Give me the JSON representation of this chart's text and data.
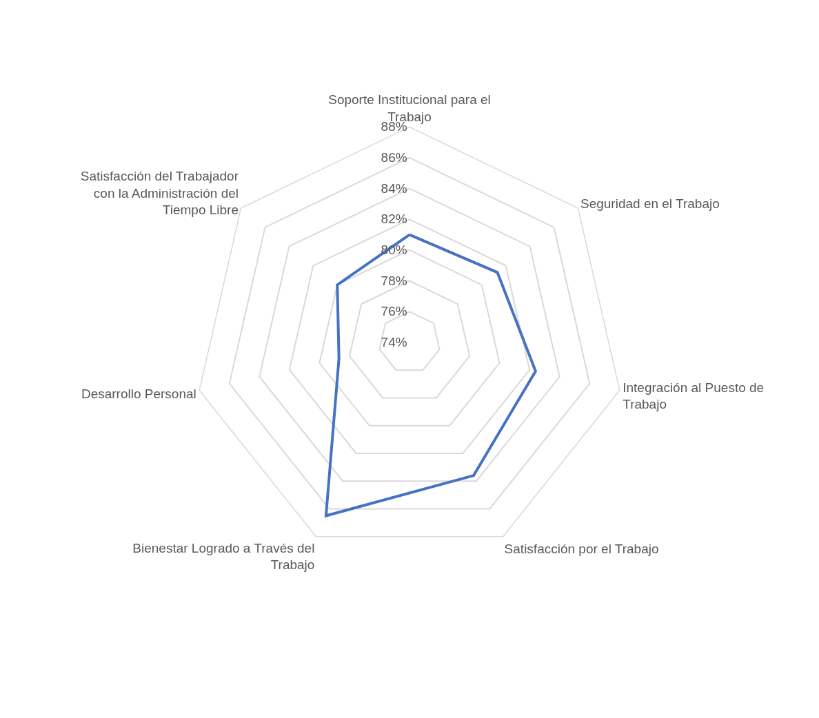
{
  "chart_data": {
    "type": "radar",
    "categories": [
      "Soporte Institucional para el Trabajo",
      "Seguridad en el Trabajo",
      "Integración al Puesto de Trabajo",
      "Satisfacción por el Trabajo",
      "Bienestar Logrado a Través del Trabajo",
      "Desarrollo Personal",
      "Satisfacción del Trabajador con la Administración del Tiempo Libre"
    ],
    "series": [
      {
        "color": "#4472c4",
        "values": [
          81.0,
          81.3,
          82.4,
          83.6,
          86.5,
          78.7,
          80.0
        ]
      }
    ],
    "ylim": [
      74,
      88
    ],
    "yticks": [
      {
        "value": 74,
        "label": "74%"
      },
      {
        "value": 76,
        "label": "76%"
      },
      {
        "value": 78,
        "label": "78%"
      },
      {
        "value": 80,
        "label": "80%"
      },
      {
        "value": 82,
        "label": "82%"
      },
      {
        "value": 84,
        "label": "84%"
      },
      {
        "value": 86,
        "label": "86%"
      },
      {
        "value": 88,
        "label": "88%"
      }
    ],
    "grid": true,
    "marker": "none",
    "line_style": "solid"
  }
}
